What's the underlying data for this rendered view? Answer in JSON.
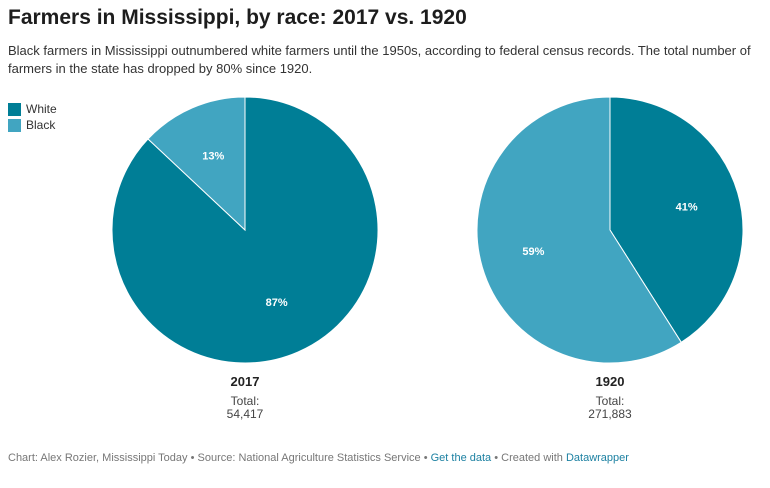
{
  "title": "Farmers in Mississippi, by race: 2017 vs. 1920",
  "subtitle": "Black farmers in Mississippi outnumbered white farmers until the 1950s, according to federal census records. The total number of farmers in the state has dropped by 80% since 1920.",
  "legend": [
    {
      "label": "White",
      "color": "#007e96"
    },
    {
      "label": "Black",
      "color": "#41a5c1"
    }
  ],
  "chart_data": [
    {
      "type": "pie",
      "title": "2017",
      "total_label": "Total:",
      "total": "54,417",
      "slices": [
        {
          "name": "White",
          "value": 87,
          "label": "87%",
          "color": "#007e96"
        },
        {
          "name": "Black",
          "value": 13,
          "label": "13%",
          "color": "#41a5c1"
        }
      ]
    },
    {
      "type": "pie",
      "title": "1920",
      "total_label": "Total:",
      "total": "271,883",
      "slices": [
        {
          "name": "White",
          "value": 41,
          "label": "41%",
          "color": "#007e96"
        },
        {
          "name": "Black",
          "value": 59,
          "label": "59%",
          "color": "#41a5c1"
        }
      ]
    }
  ],
  "footer": {
    "credit": "Chart: Alex Rozier, Mississippi Today • Source: National Agriculture Statistics Service • ",
    "get_data": "Get the data",
    "created_with": " • Created with ",
    "datawrapper": "Datawrapper"
  }
}
